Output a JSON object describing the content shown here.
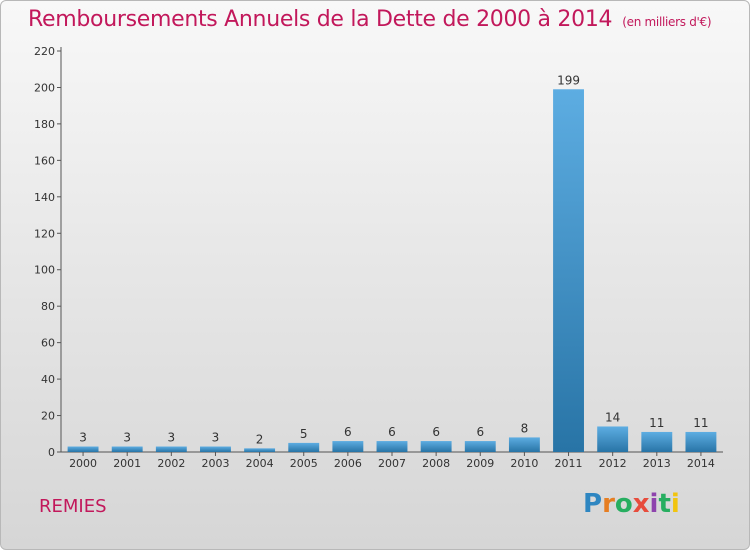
{
  "header": {
    "title": "Remboursements Annuels de la Dette de 2000 à 2014",
    "subtitle": "(en milliers d'€)"
  },
  "footer": {
    "commune": "REMIES",
    "logo_letters": [
      "P",
      "r",
      "o",
      "x",
      "i",
      "t",
      "i"
    ],
    "logo_colors": [
      "#2e86c1",
      "#e67e22",
      "#27ae60",
      "#e74c3c",
      "#8e44ad",
      "#27ae60",
      "#f1c40f"
    ]
  },
  "colors": {
    "bar_top": "#5dade2",
    "bar_bottom": "#2874a6",
    "accent": "#c2185b"
  },
  "chart_data": {
    "type": "bar",
    "title": "Remboursements Annuels de la Dette de 2000 à 2014",
    "subtitle": "(en milliers d'€)",
    "categories": [
      "2000",
      "2001",
      "2002",
      "2003",
      "2004",
      "2005",
      "2006",
      "2007",
      "2008",
      "2009",
      "2010",
      "2011",
      "2012",
      "2013",
      "2014"
    ],
    "values": [
      3,
      3,
      3,
      3,
      2,
      5,
      6,
      6,
      6,
      6,
      8,
      199,
      14,
      11,
      11
    ],
    "ylim": [
      0,
      220
    ],
    "yticks": [
      0,
      20,
      40,
      60,
      80,
      100,
      120,
      140,
      160,
      180,
      200,
      220
    ],
    "grid": false,
    "xlabel": "",
    "ylabel": ""
  }
}
